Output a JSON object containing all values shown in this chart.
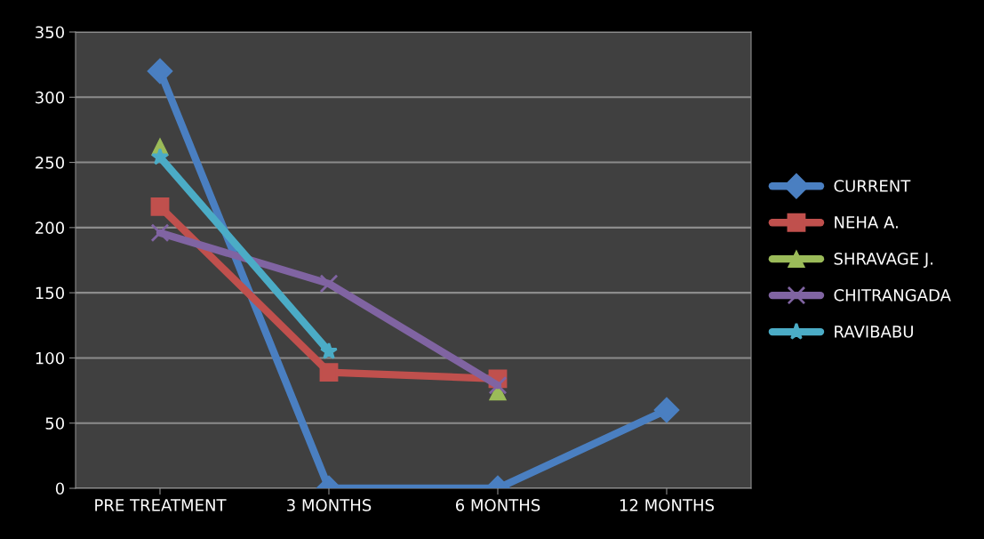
{
  "chart_data": {
    "type": "line",
    "categories": [
      "PRE TREATMENT",
      "3 MONTHS",
      "6 MONTHS",
      "12 MONTHS"
    ],
    "series": [
      {
        "name": "CURRENT",
        "color": "#4a7fc1",
        "marker": "diamond",
        "values": [
          320,
          0,
          0,
          60
        ]
      },
      {
        "name": "NEHA A.",
        "color": "#c0504d",
        "marker": "square",
        "values": [
          216,
          89,
          84,
          null
        ]
      },
      {
        "name": "SHRAVAGE J.",
        "type": "scatter",
        "color": "#9bbb59",
        "marker": "triangle",
        "values": [
          262,
          null,
          74,
          null
        ]
      },
      {
        "name": "CHITRANGADA",
        "color": "#8064a2",
        "marker": "cross",
        "values": [
          196,
          157,
          79,
          null
        ]
      },
      {
        "name": "RAVIBABU",
        "color": "#4bacc6",
        "marker": "star",
        "values": [
          254,
          105,
          null,
          null
        ]
      }
    ],
    "ylim": [
      0,
      350
    ],
    "yticks": [
      0,
      50,
      100,
      150,
      200,
      250,
      300,
      350
    ],
    "grid": "y",
    "legend": "right"
  }
}
